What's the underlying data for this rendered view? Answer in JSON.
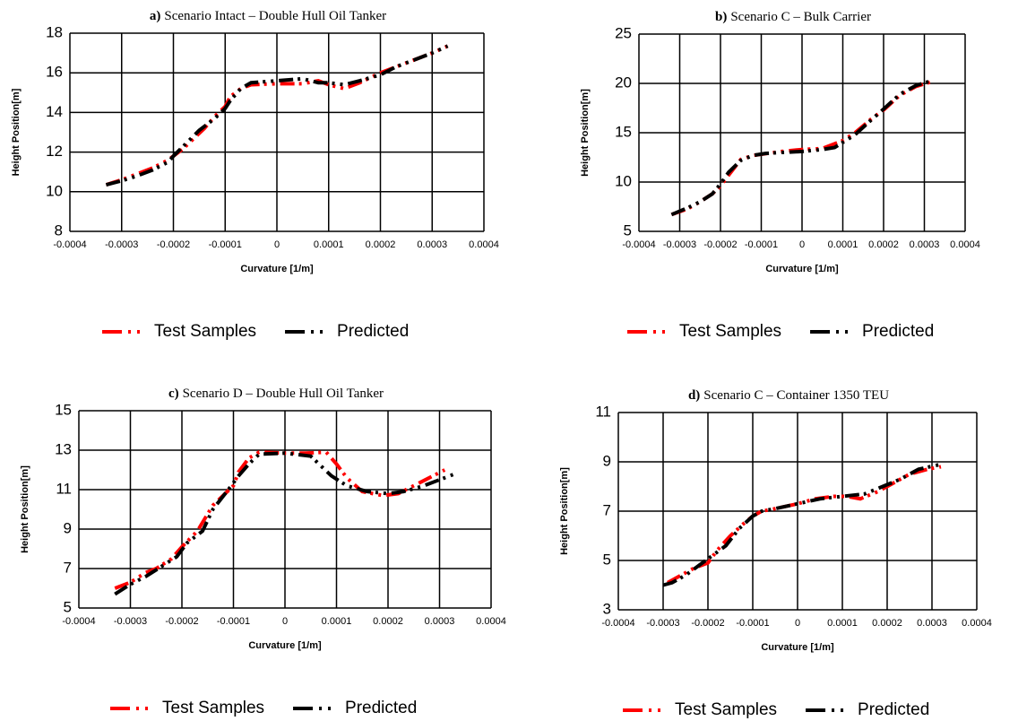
{
  "chart_data": [
    {
      "type": "line",
      "panel_label": "a)",
      "title": "Scenario Intact – Double Hull Oil Tanker",
      "xlabel": "Curvature [1/m]",
      "ylabel": "Height Position[m]",
      "xlim": [
        -0.0004,
        0.0004
      ],
      "xticks": [
        -0.0004,
        -0.0003,
        -0.0002,
        -0.0001,
        0,
        0.0001,
        0.0002,
        0.0003,
        0.0004
      ],
      "ylim": [
        8,
        18
      ],
      "yticks": [
        8,
        10,
        12,
        14,
        16,
        18
      ],
      "grid": true,
      "series": [
        {
          "name": "Test Samples",
          "color": "#ff0000",
          "x": [
            -0.00033,
            -0.0003,
            -0.00027,
            -0.00024,
            -0.00021,
            -0.0002,
            -0.00018,
            -0.00016,
            -0.00014,
            -0.00012,
            -0.0001,
            -9e-05,
            -7e-05,
            -5e-05,
            0,
            5e-05,
            8e-05,
            0.0001,
            0.00013,
            0.00016,
            0.0002,
            0.00023,
            0.00026,
            0.0003,
            0.00033
          ],
          "values": [
            10.35,
            10.6,
            10.9,
            11.2,
            11.6,
            11.8,
            12.2,
            12.7,
            13.2,
            13.8,
            14.3,
            14.8,
            15.2,
            15.4,
            15.45,
            15.45,
            15.6,
            15.4,
            15.2,
            15.5,
            16.0,
            16.3,
            16.6,
            17.0,
            17.35
          ]
        },
        {
          "name": "Predicted",
          "color": "#000000",
          "x": [
            -0.00033,
            -0.0003,
            -0.00027,
            -0.00024,
            -0.00021,
            -0.0002,
            -0.00015,
            -0.00012,
            -0.0001,
            -9e-05,
            -7e-05,
            -5e-05,
            0,
            5e-05,
            8e-05,
            0.0001,
            0.00013,
            0.00016,
            0.0002,
            0.00023,
            0.00026,
            0.0003,
            0.00033
          ],
          "values": [
            10.35,
            10.55,
            10.8,
            11.1,
            11.5,
            11.8,
            13.1,
            13.7,
            14.2,
            14.6,
            15.2,
            15.5,
            15.6,
            15.7,
            15.5,
            15.5,
            15.4,
            15.6,
            15.9,
            16.3,
            16.6,
            17.0,
            17.35
          ]
        }
      ]
    },
    {
      "type": "line",
      "panel_label": "b)",
      "title": "Scenario C – Bulk Carrier",
      "xlabel": "Curvature [1/m]",
      "ylabel": "Height Position[m]",
      "xlim": [
        -0.0004,
        0.0004
      ],
      "xticks": [
        -0.0004,
        -0.0003,
        -0.0002,
        -0.0001,
        0,
        0.0001,
        0.0002,
        0.0003,
        0.0004
      ],
      "ylim": [
        5,
        25
      ],
      "yticks": [
        5,
        10,
        15,
        20,
        25
      ],
      "grid": true,
      "series": [
        {
          "name": "Test Samples",
          "color": "#ff0000",
          "x": [
            -0.00032,
            -0.00028,
            -0.00025,
            -0.00022,
            -0.0002,
            -0.00018,
            -0.00015,
            -0.00012,
            -5e-05,
            0,
            5e-05,
            0.0001,
            0.00013,
            0.00017,
            0.0002,
            0.00024,
            0.00028,
            0.00032
          ],
          "values": [
            6.7,
            7.3,
            8.0,
            8.8,
            9.6,
            10.7,
            12.3,
            12.7,
            13.1,
            13.3,
            13.4,
            14.2,
            15.0,
            16.4,
            17.3,
            18.8,
            19.7,
            20.2
          ]
        },
        {
          "name": "Predicted",
          "color": "#000000",
          "x": [
            -0.00032,
            -0.00028,
            -0.00025,
            -0.00022,
            -0.0002,
            -0.00018,
            -0.00015,
            -0.00012,
            -9e-05,
            -5e-05,
            0,
            5e-05,
            8e-05,
            0.00013,
            0.00017,
            0.0002,
            0.00024,
            0.00028,
            0.00032
          ],
          "values": [
            6.7,
            7.4,
            8.0,
            8.8,
            9.8,
            11.0,
            12.2,
            12.7,
            12.9,
            13.0,
            13.1,
            13.3,
            13.5,
            14.8,
            16.3,
            17.4,
            18.9,
            19.8,
            20.3
          ]
        }
      ]
    },
    {
      "type": "line",
      "panel_label": "c)",
      "title": "Scenario D – Double Hull Oil Tanker",
      "xlabel": "Curvature [1/m]",
      "ylabel": "Height Position[m]",
      "xlim": [
        -0.0004,
        0.0004
      ],
      "xticks": [
        -0.0004,
        -0.0003,
        -0.0002,
        -0.0001,
        0,
        0.0001,
        0.0002,
        0.0003,
        0.0004
      ],
      "ylim": [
        5,
        15
      ],
      "yticks": [
        5,
        7,
        9,
        11,
        13,
        15
      ],
      "grid": true,
      "series": [
        {
          "name": "Test Samples",
          "color": "#ff0000",
          "x": [
            -0.00033,
            -0.0003,
            -0.00027,
            -0.00025,
            -0.00022,
            -0.0002,
            -0.00017,
            -0.00014,
            -0.0001,
            -9e-05,
            -7e-05,
            -5e-05,
            0,
            4e-05,
            8e-05,
            0.0001,
            0.00012,
            0.00015,
            0.00019,
            0.00022,
            0.00025,
            0.00028,
            0.00031
          ],
          "values": [
            6.0,
            6.3,
            6.8,
            7.0,
            7.5,
            8.1,
            8.9,
            10.2,
            11.2,
            11.9,
            12.6,
            12.9,
            12.85,
            12.85,
            12.9,
            12.3,
            11.6,
            10.9,
            10.7,
            10.8,
            11.2,
            11.6,
            12.0
          ]
        },
        {
          "name": "Predicted",
          "color": "#000000",
          "x": [
            -0.00033,
            -0.0003,
            -0.00027,
            -0.00024,
            -0.00021,
            -0.00019,
            -0.00016,
            -0.00014,
            -0.00011,
            -9e-05,
            -7e-05,
            -5e-05,
            0,
            5e-05,
            9e-05,
            0.00012,
            0.00016,
            0.0002,
            0.00023,
            0.00027,
            0.0003,
            0.00033
          ],
          "values": [
            5.7,
            6.2,
            6.6,
            7.1,
            7.6,
            8.3,
            8.9,
            10.0,
            11.0,
            11.7,
            12.3,
            12.8,
            12.85,
            12.7,
            11.7,
            11.2,
            10.9,
            10.8,
            10.9,
            11.2,
            11.5,
            11.8
          ]
        }
      ]
    },
    {
      "type": "line",
      "panel_label": "d)",
      "title": "Scenario C – Container 1350 TEU",
      "xlabel": "Curvature [1/m]",
      "ylabel": "Height Position[m]",
      "xlim": [
        -0.0004,
        0.0004
      ],
      "xticks": [
        -0.0004,
        -0.0003,
        -0.0002,
        -0.0001,
        0,
        0.0001,
        0.0002,
        0.0003,
        0.0004
      ],
      "ylim": [
        3,
        11
      ],
      "yticks": [
        3,
        5,
        7,
        9,
        11
      ],
      "grid": true,
      "series": [
        {
          "name": "Test Samples",
          "color": "#ff0000",
          "x": [
            -0.00029,
            -0.00026,
            -0.00023,
            -0.0002,
            -0.00018,
            -0.00015,
            -0.00012,
            -0.0001,
            -8e-05,
            -5e-05,
            0,
            4e-05,
            8e-05,
            0.00011,
            0.00014,
            0.00018,
            0.00022,
            0.00025,
            0.00029,
            0.00032
          ],
          "values": [
            4.1,
            4.4,
            4.7,
            4.9,
            5.4,
            6.0,
            6.5,
            6.8,
            7.0,
            7.1,
            7.3,
            7.5,
            7.6,
            7.6,
            7.5,
            7.8,
            8.2,
            8.5,
            8.7,
            8.8
          ]
        },
        {
          "name": "Predicted",
          "color": "#000000",
          "x": [
            -0.0003,
            -0.00028,
            -0.00025,
            -0.00022,
            -0.00019,
            -0.00016,
            -0.00013,
            -0.0001,
            -8e-05,
            -5e-05,
            0,
            5e-05,
            0.0001,
            0.00015,
            0.00019,
            0.00023,
            0.00027,
            0.00032
          ],
          "values": [
            4.0,
            4.1,
            4.4,
            4.8,
            5.2,
            5.6,
            6.3,
            6.8,
            7.0,
            7.1,
            7.3,
            7.5,
            7.6,
            7.7,
            8.0,
            8.3,
            8.7,
            8.9
          ]
        }
      ]
    }
  ]
}
